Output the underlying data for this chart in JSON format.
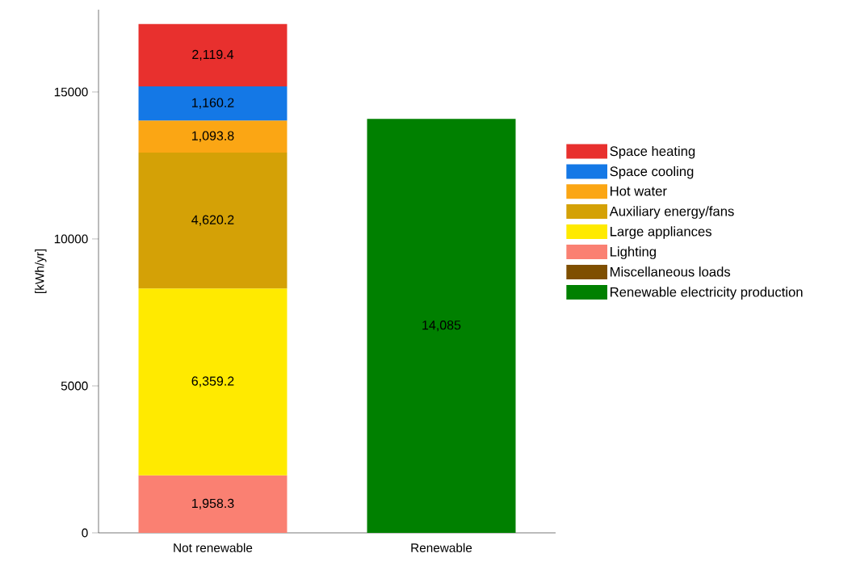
{
  "chart_data": {
    "type": "bar",
    "stacked": true,
    "ylabel": "[kWh/yr]",
    "categories": [
      "Not renewable",
      "Renewable"
    ],
    "series": [
      {
        "name": "Renewable electricity production",
        "color": "#008000",
        "values": [
          null,
          14085
        ],
        "value_labels": [
          null,
          "14,085"
        ]
      },
      {
        "name": "Miscellaneous loads",
        "color": "#7f4f00",
        "values": [
          null,
          null
        ]
      },
      {
        "name": "Lighting",
        "color": "#fa8072",
        "values": [
          1958.3,
          null
        ],
        "value_labels": [
          "1,958.3",
          null
        ]
      },
      {
        "name": "Large appliances",
        "color": "#ffea00",
        "values": [
          6359.2,
          null
        ],
        "value_labels": [
          "6,359.2",
          null
        ]
      },
      {
        "name": "Auxiliary energy/fans",
        "color": "#d4a106",
        "values": [
          4620.2,
          null
        ],
        "value_labels": [
          "4,620.2",
          null
        ]
      },
      {
        "name": "Hot water",
        "color": "#fba614",
        "values": [
          1093.8,
          null
        ],
        "value_labels": [
          "1,093.8",
          null
        ]
      },
      {
        "name": "Space cooling",
        "color": "#1478e6",
        "values": [
          1160.2,
          null
        ],
        "value_labels": [
          "1,160.2",
          null
        ]
      },
      {
        "name": "Space heating",
        "color": "#e8302e",
        "values": [
          2119.4,
          null
        ],
        "value_labels": [
          "2,119.4",
          null
        ]
      }
    ],
    "ylim": [
      0,
      17800
    ],
    "yticks": [
      0,
      5000,
      10000,
      15000
    ],
    "legend": "right",
    "grid": false
  }
}
